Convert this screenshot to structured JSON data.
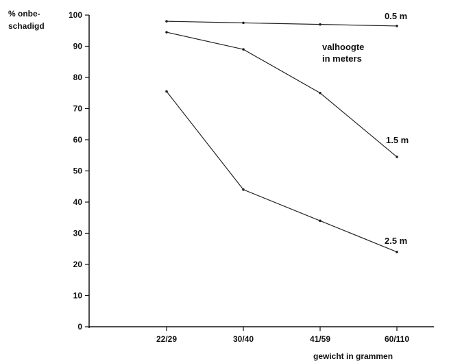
{
  "chart_data": {
    "type": "line",
    "categories": [
      "22/29",
      "30/40",
      "41/59",
      "60/110"
    ],
    "ylabel_lines": [
      "% onbe-",
      "schadigd"
    ],
    "xlabel": "gewicht in grammen",
    "ylim": [
      0,
      100
    ],
    "yticks": [
      "0",
      "10",
      "20",
      "30",
      "40",
      "50",
      "60",
      "70",
      "80",
      "90",
      "100"
    ],
    "grid": false,
    "legend_title_lines": [
      "valhoogte",
      "in meters"
    ],
    "series": [
      {
        "name": "0.5 m",
        "values": [
          98,
          97.5,
          97,
          96.5
        ]
      },
      {
        "name": "1.5 m",
        "values": [
          94.5,
          89,
          75,
          54.5
        ]
      },
      {
        "name": "2.5 m",
        "values": [
          75.5,
          44,
          34,
          24
        ]
      }
    ]
  }
}
